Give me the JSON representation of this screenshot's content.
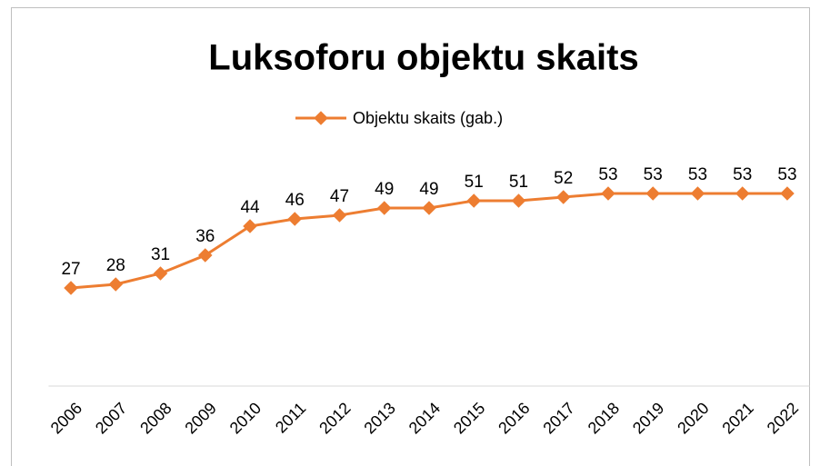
{
  "chart_data": {
    "type": "line",
    "title": "Luksoforu objektu skaits",
    "categories": [
      "2006",
      "2007",
      "2008",
      "2009",
      "2010",
      "2011",
      "2012",
      "2013",
      "2014",
      "2015",
      "2016",
      "2017",
      "2018",
      "2019",
      "2020",
      "2021",
      "2022"
    ],
    "series": [
      {
        "name": "Objektu skaits (gab.)",
        "color": "#ed7d31",
        "values": [
          27,
          28,
          31,
          36,
          44,
          46,
          47,
          49,
          49,
          51,
          51,
          52,
          53,
          53,
          53,
          53,
          53
        ]
      }
    ],
    "ylim": [
      0,
      60
    ],
    "legend": "top"
  }
}
